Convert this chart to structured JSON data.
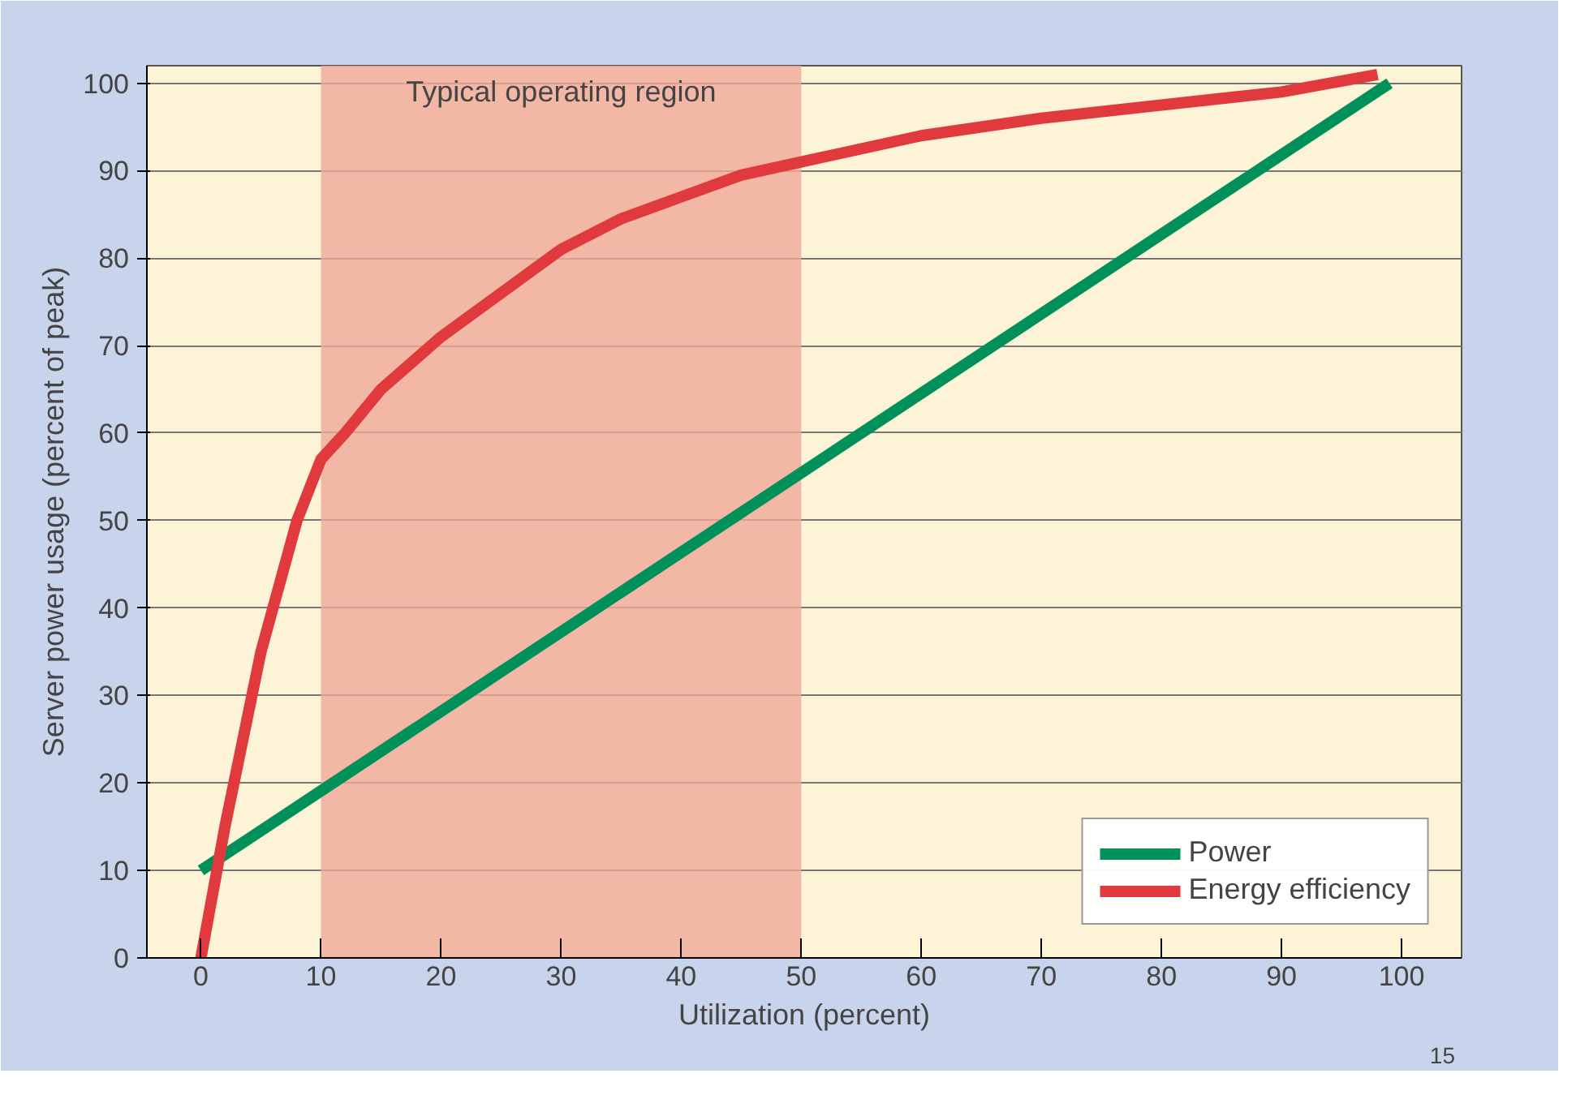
{
  "chart_data": {
    "type": "line",
    "xlabel": "Utilization (percent)",
    "ylabel": "Server power usage (percent of peak)",
    "annotations": [
      "15"
    ],
    "xlim": [
      -4.5,
      105
    ],
    "ylim": [
      0,
      102
    ],
    "xticks": [
      0,
      10,
      20,
      30,
      40,
      50,
      60,
      70,
      80,
      90,
      100
    ],
    "yticks": [
      0,
      10,
      20,
      30,
      40,
      50,
      60,
      70,
      80,
      90,
      100
    ],
    "grid": "y",
    "legend": "bottom right",
    "line_style": "solid",
    "bands": [
      {
        "axis": "x",
        "from": 10,
        "to": 50,
        "label": "Typical operating region",
        "color": "#f0a898"
      }
    ],
    "series": [
      {
        "name": "Power",
        "color": "#00915a",
        "x": [
          0,
          99
        ],
        "values": [
          10,
          100
        ]
      },
      {
        "name": "Energy efficiency",
        "color": "#e0393e",
        "x": [
          0,
          2,
          5,
          8,
          10,
          12,
          15,
          20,
          25,
          30,
          35,
          40,
          45,
          50,
          60,
          70,
          80,
          90,
          98
        ],
        "values": [
          0,
          15,
          35,
          50,
          57,
          60,
          65,
          71,
          76,
          81,
          84.5,
          87,
          89.5,
          91,
          94,
          96,
          97.5,
          99,
          101
        ]
      }
    ]
  }
}
